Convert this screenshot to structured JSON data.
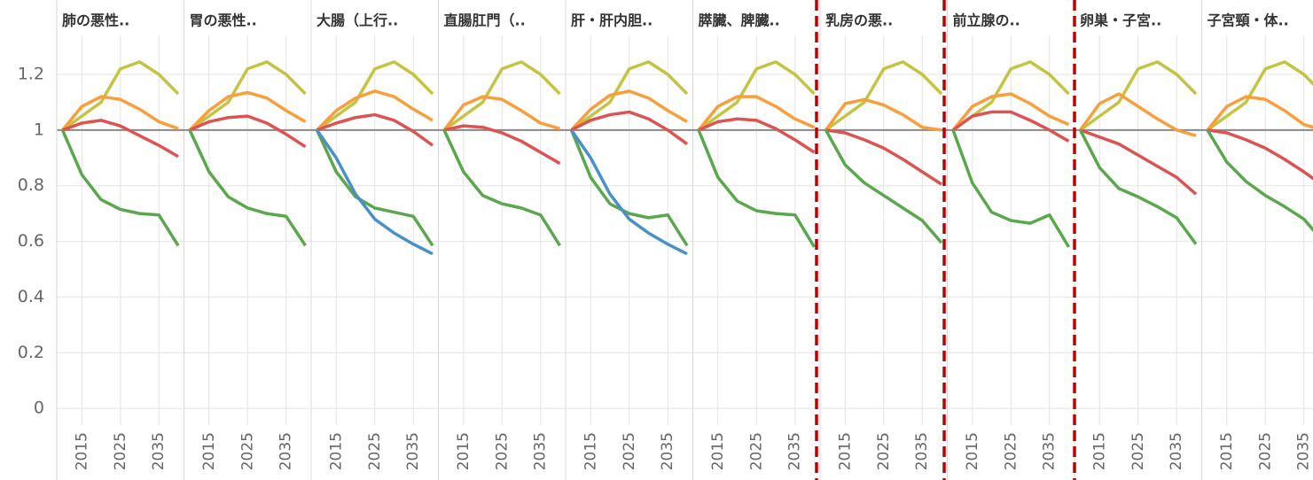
{
  "chart_data": [
    {
      "type": "line",
      "title": "肺の悪性..",
      "x": [
        2010,
        2015,
        2020,
        2025,
        2030,
        2035,
        2040
      ],
      "xlim": [
        2008.5,
        2041.5
      ],
      "xticks": [
        2015,
        2025,
        2035
      ],
      "ylim": [
        -0.06,
        1.34
      ],
      "yticks": [
        0,
        0.2,
        0.4,
        0.6,
        0.8,
        1,
        1.2
      ],
      "reference_line": 1,
      "grid": true,
      "series": [
        {
          "color": "#c3c441",
          "values": [
            1,
            1.05,
            1.1,
            1.22,
            1.245,
            1.2,
            1.13
          ]
        },
        {
          "color": "#f99e3a",
          "values": [
            1,
            1.085,
            1.12,
            1.11,
            1.075,
            1.03,
            1.005
          ]
        },
        {
          "color": "#dd5353",
          "values": [
            1,
            1.025,
            1.035,
            1.015,
            0.98,
            0.945,
            0.905
          ]
        },
        {
          "color": "#5aa74e",
          "values": [
            1,
            0.84,
            0.75,
            0.715,
            0.7,
            0.695,
            0.585
          ]
        }
      ]
    },
    {
      "type": "line",
      "title": "胃の悪性..",
      "x": [
        2010,
        2015,
        2020,
        2025,
        2030,
        2035,
        2040
      ],
      "xlim": [
        2008.5,
        2041.5
      ],
      "xticks": [
        2015,
        2025,
        2035
      ],
      "ylim": [
        -0.06,
        1.34
      ],
      "yticks": [
        0,
        0.2,
        0.4,
        0.6,
        0.8,
        1,
        1.2
      ],
      "reference_line": 1,
      "grid": true,
      "series": [
        {
          "color": "#c3c441",
          "values": [
            1,
            1.05,
            1.1,
            1.22,
            1.245,
            1.2,
            1.13
          ]
        },
        {
          "color": "#f99e3a",
          "values": [
            1,
            1.07,
            1.12,
            1.135,
            1.115,
            1.07,
            1.03
          ]
        },
        {
          "color": "#dd5353",
          "values": [
            1,
            1.03,
            1.045,
            1.05,
            1.025,
            0.985,
            0.94
          ]
        },
        {
          "color": "#5aa74e",
          "values": [
            1,
            0.85,
            0.76,
            0.72,
            0.7,
            0.69,
            0.585
          ]
        }
      ]
    },
    {
      "type": "line",
      "title": "大腸（上行..",
      "x": [
        2010,
        2015,
        2020,
        2025,
        2030,
        2035,
        2040
      ],
      "xlim": [
        2008.5,
        2041.5
      ],
      "xticks": [
        2015,
        2025,
        2035
      ],
      "ylim": [
        -0.06,
        1.34
      ],
      "yticks": [
        0,
        0.2,
        0.4,
        0.6,
        0.8,
        1,
        1.2
      ],
      "reference_line": 1,
      "grid": true,
      "series": [
        {
          "color": "#c3c441",
          "values": [
            1,
            1.05,
            1.1,
            1.22,
            1.245,
            1.2,
            1.13
          ]
        },
        {
          "color": "#f99e3a",
          "values": [
            1,
            1.07,
            1.115,
            1.14,
            1.12,
            1.075,
            1.035
          ]
        },
        {
          "color": "#dd5353",
          "values": [
            1,
            1.025,
            1.045,
            1.055,
            1.035,
            0.995,
            0.945
          ]
        },
        {
          "color": "#5aa74e",
          "values": [
            1,
            0.85,
            0.76,
            0.72,
            0.705,
            0.69,
            0.585
          ]
        },
        {
          "color": "#4a90c8",
          "values": [
            1,
            0.9,
            0.77,
            0.68,
            0.63,
            0.59,
            0.555
          ]
        }
      ]
    },
    {
      "type": "line",
      "title": "直腸肛門（..",
      "x": [
        2010,
        2015,
        2020,
        2025,
        2030,
        2035,
        2040
      ],
      "xlim": [
        2008.5,
        2041.5
      ],
      "xticks": [
        2015,
        2025,
        2035
      ],
      "ylim": [
        -0.06,
        1.34
      ],
      "yticks": [
        0,
        0.2,
        0.4,
        0.6,
        0.8,
        1,
        1.2
      ],
      "reference_line": 1,
      "grid": true,
      "series": [
        {
          "color": "#c3c441",
          "values": [
            1,
            1.05,
            1.1,
            1.22,
            1.245,
            1.2,
            1.13
          ]
        },
        {
          "color": "#f99e3a",
          "values": [
            1,
            1.09,
            1.12,
            1.11,
            1.07,
            1.025,
            1.005
          ]
        },
        {
          "color": "#dd5353",
          "values": [
            1,
            1.015,
            1.01,
            0.99,
            0.96,
            0.92,
            0.88
          ]
        },
        {
          "color": "#5aa74e",
          "values": [
            1,
            0.85,
            0.765,
            0.735,
            0.72,
            0.695,
            0.585
          ]
        }
      ]
    },
    {
      "type": "line",
      "title": "肝・肝内胆..",
      "x": [
        2010,
        2015,
        2020,
        2025,
        2030,
        2035,
        2040
      ],
      "xlim": [
        2008.5,
        2041.5
      ],
      "xticks": [
        2015,
        2025,
        2035
      ],
      "ylim": [
        -0.06,
        1.34
      ],
      "yticks": [
        0,
        0.2,
        0.4,
        0.6,
        0.8,
        1,
        1.2
      ],
      "reference_line": 1,
      "grid": true,
      "series": [
        {
          "color": "#c3c441",
          "values": [
            1,
            1.05,
            1.1,
            1.22,
            1.245,
            1.2,
            1.13
          ]
        },
        {
          "color": "#f99e3a",
          "values": [
            1,
            1.075,
            1.125,
            1.14,
            1.115,
            1.07,
            1.03
          ]
        },
        {
          "color": "#dd5353",
          "values": [
            1,
            1.035,
            1.055,
            1.065,
            1.04,
            1.0,
            0.95
          ]
        },
        {
          "color": "#5aa74e",
          "values": [
            1,
            0.83,
            0.735,
            0.7,
            0.685,
            0.695,
            0.585
          ]
        },
        {
          "color": "#4a90c8",
          "values": [
            1,
            0.9,
            0.77,
            0.68,
            0.63,
            0.59,
            0.555
          ]
        }
      ]
    },
    {
      "type": "line",
      "title": "膵臓、脾臓..",
      "x": [
        2010,
        2015,
        2020,
        2025,
        2030,
        2035,
        2040
      ],
      "xlim": [
        2008.5,
        2041.5
      ],
      "xticks": [
        2015,
        2025,
        2035
      ],
      "ylim": [
        -0.06,
        1.34
      ],
      "yticks": [
        0,
        0.2,
        0.4,
        0.6,
        0.8,
        1,
        1.2
      ],
      "reference_line": 1,
      "grid": true,
      "series": [
        {
          "color": "#c3c441",
          "values": [
            1,
            1.05,
            1.1,
            1.22,
            1.245,
            1.2,
            1.13
          ]
        },
        {
          "color": "#f99e3a",
          "values": [
            1,
            1.085,
            1.12,
            1.12,
            1.085,
            1.04,
            1.01
          ]
        },
        {
          "color": "#dd5353",
          "values": [
            1,
            1.03,
            1.04,
            1.035,
            1.005,
            0.965,
            0.92
          ]
        },
        {
          "color": "#5aa74e",
          "values": [
            1,
            0.83,
            0.745,
            0.71,
            0.7,
            0.695,
            0.58
          ]
        }
      ]
    },
    {
      "type": "line",
      "title": "乳房の悪..",
      "x": [
        2010,
        2015,
        2020,
        2025,
        2030,
        2035,
        2040
      ],
      "xlim": [
        2008.5,
        2041.5
      ],
      "xticks": [
        2015,
        2025,
        2035
      ],
      "ylim": [
        -0.06,
        1.34
      ],
      "yticks": [
        0,
        0.2,
        0.4,
        0.6,
        0.8,
        1,
        1.2
      ],
      "reference_line": 1,
      "grid": true,
      "series": [
        {
          "color": "#c3c441",
          "values": [
            1,
            1.05,
            1.1,
            1.22,
            1.245,
            1.2,
            1.13
          ]
        },
        {
          "color": "#f99e3a",
          "values": [
            1,
            1.095,
            1.11,
            1.09,
            1.055,
            1.01,
            1.0
          ]
        },
        {
          "color": "#dd5353",
          "values": [
            1,
            0.99,
            0.965,
            0.935,
            0.895,
            0.85,
            0.805
          ]
        },
        {
          "color": "#5aa74e",
          "values": [
            1,
            0.875,
            0.81,
            0.765,
            0.72,
            0.675,
            0.595
          ]
        }
      ]
    },
    {
      "type": "line",
      "title": "前立腺の..",
      "x": [
        2010,
        2015,
        2020,
        2025,
        2030,
        2035,
        2040
      ],
      "xlim": [
        2008.5,
        2041.5
      ],
      "xticks": [
        2015,
        2025,
        2035
      ],
      "ylim": [
        -0.06,
        1.34
      ],
      "yticks": [
        0,
        0.2,
        0.4,
        0.6,
        0.8,
        1,
        1.2
      ],
      "reference_line": 1,
      "grid": true,
      "series": [
        {
          "color": "#c3c441",
          "values": [
            1,
            1.05,
            1.1,
            1.22,
            1.245,
            1.2,
            1.13
          ]
        },
        {
          "color": "#f99e3a",
          "values": [
            1,
            1.085,
            1.12,
            1.13,
            1.095,
            1.05,
            1.02
          ]
        },
        {
          "color": "#dd5353",
          "values": [
            1,
            1.05,
            1.065,
            1.065,
            1.035,
            1.0,
            0.96
          ]
        },
        {
          "color": "#5aa74e",
          "values": [
            1,
            0.81,
            0.705,
            0.675,
            0.665,
            0.695,
            0.58
          ]
        }
      ]
    },
    {
      "type": "line",
      "title": "卵巣・子宮..",
      "x": [
        2010,
        2015,
        2020,
        2025,
        2030,
        2035,
        2040
      ],
      "xlim": [
        2008.5,
        2041.5
      ],
      "xticks": [
        2015,
        2025,
        2035
      ],
      "ylim": [
        -0.06,
        1.34
      ],
      "yticks": [
        0,
        0.2,
        0.4,
        0.6,
        0.8,
        1,
        1.2
      ],
      "reference_line": 1,
      "grid": true,
      "series": [
        {
          "color": "#c3c441",
          "values": [
            1,
            1.05,
            1.1,
            1.22,
            1.245,
            1.2,
            1.13
          ]
        },
        {
          "color": "#f99e3a",
          "values": [
            1,
            1.095,
            1.13,
            1.085,
            1.04,
            1.0,
            0.98
          ]
        },
        {
          "color": "#dd5353",
          "values": [
            1,
            0.975,
            0.95,
            0.91,
            0.87,
            0.83,
            0.77
          ]
        },
        {
          "color": "#5aa74e",
          "values": [
            1,
            0.865,
            0.79,
            0.76,
            0.725,
            0.685,
            0.59
          ]
        }
      ]
    },
    {
      "type": "line",
      "title": "子宮頸・体..",
      "x": [
        2010,
        2015,
        2020,
        2025,
        2030,
        2035,
        2040
      ],
      "xlim": [
        2008.5,
        2041.5
      ],
      "xticks": [
        2015,
        2025,
        2035
      ],
      "ylim": [
        -0.06,
        1.34
      ],
      "yticks": [
        0,
        0.2,
        0.4,
        0.6,
        0.8,
        1,
        1.2
      ],
      "reference_line": 1,
      "grid": true,
      "series": [
        {
          "color": "#c3c441",
          "values": [
            1,
            1.05,
            1.1,
            1.22,
            1.245,
            1.2,
            1.13
          ]
        },
        {
          "color": "#f99e3a",
          "values": [
            1,
            1.085,
            1.12,
            1.11,
            1.07,
            1.02,
            1.0
          ]
        },
        {
          "color": "#dd5353",
          "values": [
            1,
            0.99,
            0.965,
            0.935,
            0.895,
            0.85,
            0.8
          ]
        },
        {
          "color": "#5aa74e",
          "values": [
            1,
            0.885,
            0.815,
            0.765,
            0.725,
            0.68,
            0.6
          ]
        }
      ]
    }
  ]
}
